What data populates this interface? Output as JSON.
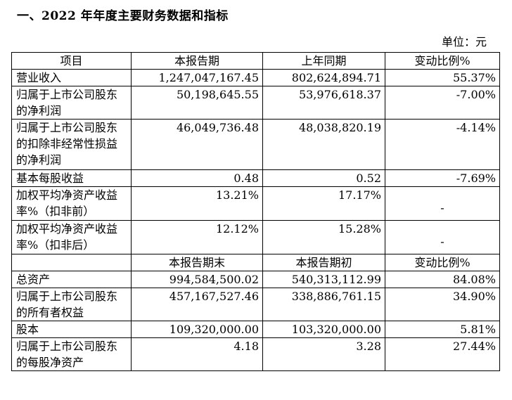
{
  "title": "一、2022 年年度主要财务数据和指标",
  "unit": "单位：元",
  "headers": {
    "item": "项目",
    "current_period": "本报告期",
    "last_year_same": "上年同期",
    "change_ratio": "变动比例%"
  },
  "rows_part1": [
    {
      "label": "营业收入",
      "current": "1,247,047,167.45",
      "previous": "802,624,894.71",
      "change": "55.37%"
    },
    {
      "label": "归属于上市公司股东的净利润",
      "current": "50,198,645.55",
      "previous": "53,976,618.37",
      "change": "-7.00%"
    },
    {
      "label": "归属于上市公司股东的扣除非经常性损益的净利润",
      "current": "46,049,736.48",
      "previous": "48,038,820.19",
      "change": "-4.14%"
    },
    {
      "label": "基本每股收益",
      "current": "0.48",
      "previous": "0.52",
      "change": "-7.69%"
    },
    {
      "label": "加权平均净资产收益率%（扣非前）",
      "current": "13.21%",
      "previous": "17.17%",
      "change": "-"
    },
    {
      "label": "加权平均净资产收益率%（扣非后）",
      "current": "12.12%",
      "previous": "15.28%",
      "change": "-"
    }
  ],
  "headers2": {
    "period_end": "本报告期末",
    "period_begin": "本报告期初",
    "change_ratio": "变动比例%"
  },
  "rows_part2": [
    {
      "label": "总资产",
      "current": "994,584,500.02",
      "previous": "540,313,112.99",
      "change": "84.08%"
    },
    {
      "label": "归属于上市公司股东的所有者权益",
      "current": "457,167,527.46",
      "previous": "338,886,761.15",
      "change": "34.90%"
    },
    {
      "label": "股本",
      "current": "109,320,000.00",
      "previous": "103,320,000.00",
      "change": "5.81%"
    },
    {
      "label": "归属于上市公司股东的每股净资产",
      "current": "4.18",
      "previous": "3.28",
      "change": "27.44%"
    }
  ]
}
